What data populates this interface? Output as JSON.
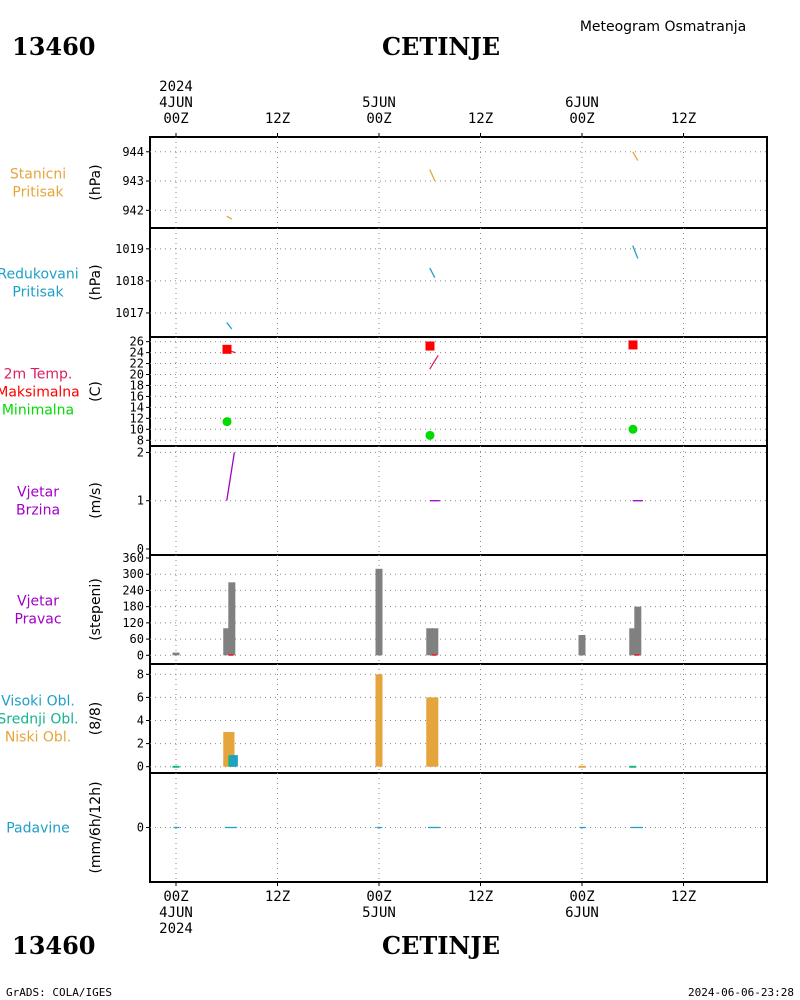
{
  "header": {
    "station_id": "13460",
    "station_name": "CETINJE",
    "title": "Meteogram Osmatranja"
  },
  "footer": {
    "credit": "GrADS: COLA/IGES",
    "timestamp": "2024-06-06-23:28",
    "station_id": "13460",
    "station_name": "CETINJE"
  },
  "colors": {
    "pressure": "#e6a53c",
    "reduced": "#1ea0c8",
    "temp": "#dc1e64",
    "tmax": "#ff0000",
    "tmin": "#00dc00",
    "wind": "#a000c8",
    "bars": "#808080",
    "cloud_low": "#e6a53c",
    "cloud_mid": "#14b48c",
    "cloud_high": "#1ea0c8",
    "precip": "#1ea0c8"
  },
  "chart_data": {
    "type": "line",
    "time_axis": {
      "ticks": [
        {
          "t": 0,
          "top": [
            "2024",
            "4JUN",
            "00Z"
          ],
          "bottom": [
            "00Z",
            "4JUN",
            "2024"
          ]
        },
        {
          "t": 12,
          "top": [
            "",
            "",
            "12Z"
          ],
          "bottom": [
            "12Z",
            "",
            ""
          ]
        },
        {
          "t": 24,
          "top": [
            "",
            "5JUN",
            "00Z"
          ],
          "bottom": [
            "00Z",
            "5JUN",
            ""
          ]
        },
        {
          "t": 36,
          "top": [
            "",
            "",
            "12Z"
          ],
          "bottom": [
            "12Z",
            "",
            ""
          ]
        },
        {
          "t": 48,
          "top": [
            "",
            "6JUN",
            "00Z"
          ],
          "bottom": [
            "00Z",
            "6JUN",
            ""
          ]
        },
        {
          "t": 60,
          "top": [
            "",
            "",
            "12Z"
          ],
          "bottom": [
            "12Z",
            "",
            ""
          ]
        }
      ],
      "range": [
        "2024-06-03T22:00Z",
        "2024-06-06T19:00Z"
      ]
    },
    "panels": [
      {
        "id": "stanicni",
        "labels": [
          {
            "text": "Stanicni",
            "color": "#e6a53c"
          },
          {
            "text": "Pritisak",
            "color": "#e6a53c"
          }
        ],
        "unit": "(hPa)",
        "ylim": [
          941.6,
          944.3
        ],
        "yticks": [
          942,
          943,
          944
        ],
        "ygrid": [
          942,
          943,
          944
        ],
        "series": [
          {
            "type": "segment",
            "color": "#e6a53c",
            "points": [
              [
                6,
                941.8
              ],
              [
                6.6,
                941.7
              ]
            ]
          },
          {
            "type": "segment",
            "color": "#e6a53c",
            "points": [
              [
                30,
                943.4
              ],
              [
                30.6,
                943.0
              ]
            ]
          },
          {
            "type": "segment",
            "color": "#e6a53c",
            "points": [
              [
                54,
                944.0
              ],
              [
                54.6,
                943.7
              ]
            ]
          }
        ]
      },
      {
        "id": "redukovani",
        "labels": [
          {
            "text": "Redukovani",
            "color": "#1ea0c8"
          },
          {
            "text": "Pritisak",
            "color": "#1ea0c8"
          }
        ],
        "unit": "(hPa)",
        "ylim": [
          1016.5,
          1019.4
        ],
        "yticks": [
          1017,
          1018,
          1019
        ],
        "ygrid": [
          1017,
          1018,
          1019
        ],
        "series": [
          {
            "type": "segment",
            "color": "#1ea0c8",
            "points": [
              [
                6,
                1016.7
              ],
              [
                6.6,
                1016.5
              ]
            ]
          },
          {
            "type": "segment",
            "color": "#1ea0c8",
            "points": [
              [
                30,
                1018.4
              ],
              [
                30.6,
                1018.1
              ]
            ]
          },
          {
            "type": "segment",
            "color": "#1ea0c8",
            "points": [
              [
                54,
                1019.1
              ],
              [
                54.6,
                1018.7
              ]
            ]
          }
        ]
      },
      {
        "id": "temperatura",
        "labels": [
          {
            "text": "2m Temp.",
            "color": "#dc1e64"
          },
          {
            "text": "Maksimalna",
            "color": "#ff0000"
          },
          {
            "text": "Minimalna",
            "color": "#00dc00"
          }
        ],
        "unit": "(C)",
        "ylim": [
          7.5,
          26.3
        ],
        "yticks": [
          8,
          10,
          12,
          14,
          16,
          18,
          20,
          22,
          24,
          26
        ],
        "ygrid": [
          8,
          10,
          12,
          14,
          16,
          18,
          20,
          22,
          24,
          26
        ],
        "series": [
          {
            "type": "segment",
            "color": "#dc1e64",
            "points": [
              [
                6,
                24.5
              ],
              [
                7,
                24
              ]
            ]
          },
          {
            "type": "segment",
            "color": "#dc1e64",
            "points": [
              [
                30,
                21
              ],
              [
                31,
                23.5
              ]
            ]
          }
        ],
        "markers": [
          {
            "shape": "square",
            "color": "#ff0000",
            "x": 0,
            "y": 24.6
          },
          {
            "shape": "square",
            "color": "#ff0000",
            "x": 24,
            "y": 25.2
          },
          {
            "shape": "square",
            "color": "#ff0000",
            "x": 48,
            "y": 25.4
          },
          {
            "shape": "circle",
            "color": "#00dc00",
            "x": 0,
            "y": 11.4
          },
          {
            "shape": "circle",
            "color": "#00dc00",
            "x": 24,
            "y": 8.9
          },
          {
            "shape": "circle",
            "color": "#00dc00",
            "x": 48,
            "y": 10.0
          }
        ]
      },
      {
        "id": "brzina",
        "labels": [
          {
            "text": "Vjetar",
            "color": "#a000c8"
          },
          {
            "text": "Brzina",
            "color": "#a000c8"
          }
        ],
        "unit": "(m/s)",
        "ylim": [
          0,
          2.05
        ],
        "yticks": [
          0,
          1,
          2
        ],
        "ygrid": [
          1,
          2
        ],
        "series": [
          {
            "type": "segment",
            "color": "#a000c8",
            "points": [
              [
                6,
                1
              ],
              [
                6.9,
                2
              ]
            ]
          },
          {
            "type": "segment",
            "color": "#a000c8",
            "points": [
              [
                30,
                1
              ],
              [
                31.2,
                1
              ]
            ]
          },
          {
            "type": "segment",
            "color": "#a000c8",
            "points": [
              [
                54,
                1
              ],
              [
                55.2,
                1
              ]
            ]
          }
        ]
      },
      {
        "id": "pravac",
        "labels": [
          {
            "text": "Vjetar",
            "color": "#a000c8"
          },
          {
            "text": "Pravac",
            "color": "#a000c8"
          }
        ],
        "unit": "(stepeni)",
        "ylim": [
          -10,
          360
        ],
        "yticks": [
          0,
          60,
          120,
          180,
          240,
          300,
          360
        ],
        "ygrid": [
          0,
          60,
          120,
          180,
          240,
          300
        ],
        "bars": [
          {
            "x": 0,
            "value": 10,
            "color": "#808080"
          },
          {
            "x": 6,
            "value": 100,
            "color": "#808080"
          },
          {
            "x": 6.6,
            "value": 270,
            "color": "#808080"
          },
          {
            "x": 24,
            "value": 320,
            "color": "#808080"
          },
          {
            "x": 30,
            "value": 100,
            "color": "#808080"
          },
          {
            "x": 30.6,
            "value": 100,
            "color": "#808080"
          },
          {
            "x": 48,
            "value": 75,
            "color": "#808080"
          },
          {
            "x": 54,
            "value": 100,
            "color": "#808080"
          },
          {
            "x": 54.6,
            "value": 180,
            "color": "#808080"
          }
        ],
        "series": [
          {
            "type": "segment",
            "color": "#ff0000",
            "points": [
              [
                6.2,
                1
              ],
              [
                6.8,
                1
              ]
            ]
          },
          {
            "type": "segment",
            "color": "#ff0000",
            "points": [
              [
                30.2,
                1
              ],
              [
                30.8,
                1
              ]
            ]
          },
          {
            "type": "segment",
            "color": "#ff0000",
            "points": [
              [
                54.2,
                1
              ],
              [
                54.8,
                1
              ]
            ]
          }
        ]
      },
      {
        "id": "oblacnost",
        "labels": [
          {
            "text": "Visoki Obl.",
            "color": "#1ea0c8"
          },
          {
            "text": "Srednji Obl.",
            "color": "#14b48c"
          },
          {
            "text": "Niski Obl.",
            "color": "#e6a53c"
          }
        ],
        "unit": "(8/8)",
        "ylim": [
          -0.2,
          8.2
        ],
        "yticks": [
          0,
          2,
          4,
          6,
          8
        ],
        "ygrid": [
          0,
          2,
          4,
          6,
          8
        ],
        "bars": [
          {
            "x": 0,
            "value": 0.08,
            "color": "#14b48c"
          },
          {
            "x": 6,
            "value": 3,
            "color": "#e6a53c"
          },
          {
            "x": 6.5,
            "value": 3,
            "color": "#e6a53c"
          },
          {
            "x": 6.6,
            "value": 1,
            "color": "#14b48c"
          },
          {
            "x": 6.9,
            "value": 1,
            "color": "#1ea0c8"
          },
          {
            "x": 24,
            "value": 8,
            "color": "#e6a53c"
          },
          {
            "x": 30,
            "value": 6,
            "color": "#e6a53c"
          },
          {
            "x": 30.6,
            "value": 6,
            "color": "#e6a53c"
          },
          {
            "x": 48,
            "value": 0.08,
            "color": "#e6a53c"
          },
          {
            "x": 54,
            "value": 0.08,
            "color": "#14b48c"
          }
        ]
      },
      {
        "id": "padavine",
        "labels": [
          {
            "text": "Padavine",
            "color": "#1ea0c8"
          }
        ],
        "unit": "(mm/6h/12h)",
        "ylim": [
          -1,
          1
        ],
        "yticks": [
          0
        ],
        "ygrid": [
          0
        ],
        "series": [
          {
            "type": "segment",
            "color": "#1ea0c8",
            "points": [
              [
                -0.3,
                0
              ],
              [
                0.4,
                0
              ]
            ]
          },
          {
            "type": "segment",
            "color": "#1ea0c8",
            "points": [
              [
                5.8,
                0
              ],
              [
                7.2,
                0
              ]
            ]
          },
          {
            "type": "segment",
            "color": "#1ea0c8",
            "points": [
              [
                23.7,
                0
              ],
              [
                24.4,
                0
              ]
            ]
          },
          {
            "type": "segment",
            "color": "#1ea0c8",
            "points": [
              [
                29.8,
                0
              ],
              [
                31.2,
                0
              ]
            ]
          },
          {
            "type": "segment",
            "color": "#1ea0c8",
            "points": [
              [
                47.7,
                0
              ],
              [
                48.4,
                0
              ]
            ]
          },
          {
            "type": "segment",
            "color": "#1ea0c8",
            "points": [
              [
                53.8,
                0
              ],
              [
                55.2,
                0
              ]
            ]
          }
        ]
      }
    ]
  }
}
